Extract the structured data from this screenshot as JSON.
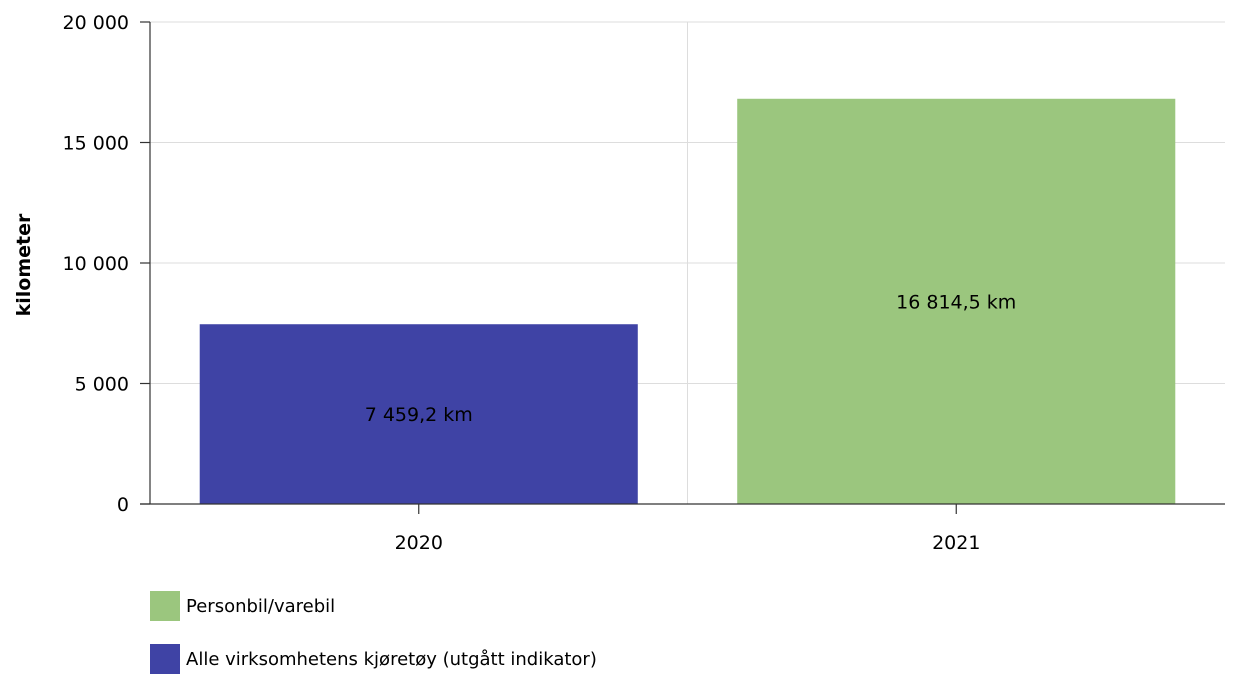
{
  "chart_data": {
    "type": "bar",
    "categories": [
      "2020",
      "2021"
    ],
    "ylabel": "kilometer",
    "ylim": [
      0,
      20000
    ],
    "yticks": [
      {
        "value": 0,
        "label": "0"
      },
      {
        "value": 5000,
        "label": "5 000"
      },
      {
        "value": 10000,
        "label": "10 000"
      },
      {
        "value": 15000,
        "label": "15 000"
      },
      {
        "value": 20000,
        "label": "20 000"
      }
    ],
    "bars": [
      {
        "category": "2020",
        "series": "Alle virksomhetens kjøretøy (utgått indikator)",
        "value": 7459.2,
        "label": "7 459,2 km",
        "color": "#3f43a5"
      },
      {
        "category": "2021",
        "series": "Personbil/varebil",
        "value": 16814.5,
        "label": "16 814,5 km",
        "color": "#9bc67e"
      }
    ],
    "legend": [
      {
        "name": "Personbil/varebil",
        "color": "#9bc67e"
      },
      {
        "name": "Alle virksomhetens kjøretøy (utgått indikator)",
        "color": "#3f43a5"
      }
    ],
    "grid": true,
    "legend_position": "bottom-left"
  }
}
